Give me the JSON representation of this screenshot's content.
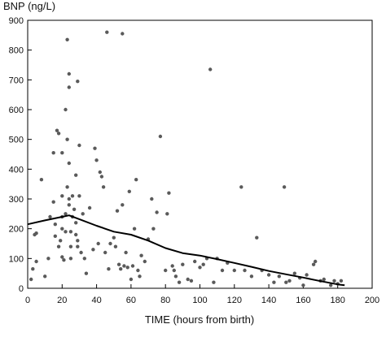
{
  "chart_data": {
    "type": "scatter",
    "title": "",
    "xlabel": "TIME (hours from birth)",
    "ylabel": "BNP (ng/L)",
    "xlim": [
      0,
      200
    ],
    "ylim": [
      0,
      900
    ],
    "xticks": [
      "0",
      "20",
      "40",
      "60",
      "80",
      "100",
      "120",
      "140",
      "160",
      "180",
      "200"
    ],
    "yticks": [
      "0",
      "100",
      "200",
      "300",
      "400",
      "500",
      "600",
      "700",
      "800",
      "900"
    ],
    "grid": false,
    "point_color": "#5a5a5a",
    "line_color": "#000000",
    "series": [
      {
        "type": "scatter",
        "points": [
          [
            2,
            30
          ],
          [
            3,
            65
          ],
          [
            4,
            180
          ],
          [
            5,
            90
          ],
          [
            5,
            185
          ],
          [
            8,
            365
          ],
          [
            10,
            40
          ],
          [
            12,
            100
          ],
          [
            13,
            240
          ],
          [
            15,
            455
          ],
          [
            15,
            290
          ],
          [
            16,
            215
          ],
          [
            16,
            175
          ],
          [
            17,
            530
          ],
          [
            18,
            520
          ],
          [
            18,
            140
          ],
          [
            19,
            160
          ],
          [
            20,
            455
          ],
          [
            20,
            310
          ],
          [
            20,
            240
          ],
          [
            20,
            200
          ],
          [
            20,
            105
          ],
          [
            21,
            95
          ],
          [
            22,
            600
          ],
          [
            22,
            250
          ],
          [
            22,
            190
          ],
          [
            23,
            835
          ],
          [
            23,
            500
          ],
          [
            23,
            340
          ],
          [
            24,
            720
          ],
          [
            24,
            675
          ],
          [
            24,
            420
          ],
          [
            24,
            300
          ],
          [
            24,
            280
          ],
          [
            25,
            190
          ],
          [
            25,
            140
          ],
          [
            25,
            100
          ],
          [
            26,
            310
          ],
          [
            26,
            240
          ],
          [
            27,
            265
          ],
          [
            28,
            380
          ],
          [
            28,
            220
          ],
          [
            28,
            180
          ],
          [
            29,
            695
          ],
          [
            29,
            160
          ],
          [
            29,
            140
          ],
          [
            30,
            480
          ],
          [
            30,
            310
          ],
          [
            31,
            120
          ],
          [
            32,
            250
          ],
          [
            33,
            100
          ],
          [
            34,
            50
          ],
          [
            36,
            270
          ],
          [
            38,
            130
          ],
          [
            39,
            470
          ],
          [
            40,
            430
          ],
          [
            41,
            150
          ],
          [
            42,
            390
          ],
          [
            43,
            375
          ],
          [
            44,
            340
          ],
          [
            45,
            120
          ],
          [
            46,
            860
          ],
          [
            47,
            65
          ],
          [
            48,
            150
          ],
          [
            50,
            170
          ],
          [
            51,
            140
          ],
          [
            52,
            260
          ],
          [
            53,
            80
          ],
          [
            54,
            65
          ],
          [
            55,
            855
          ],
          [
            55,
            280
          ],
          [
            56,
            75
          ],
          [
            57,
            120
          ],
          [
            58,
            70
          ],
          [
            59,
            325
          ],
          [
            60,
            30
          ],
          [
            61,
            75
          ],
          [
            62,
            200
          ],
          [
            63,
            365
          ],
          [
            64,
            60
          ],
          [
            65,
            40
          ],
          [
            66,
            110
          ],
          [
            68,
            90
          ],
          [
            70,
            165
          ],
          [
            72,
            300
          ],
          [
            73,
            200
          ],
          [
            75,
            255
          ],
          [
            77,
            510
          ],
          [
            80,
            60
          ],
          [
            81,
            250
          ],
          [
            82,
            320
          ],
          [
            84,
            75
          ],
          [
            85,
            60
          ],
          [
            86,
            40
          ],
          [
            88,
            20
          ],
          [
            90,
            80
          ],
          [
            93,
            30
          ],
          [
            95,
            25
          ],
          [
            97,
            90
          ],
          [
            100,
            70
          ],
          [
            102,
            80
          ],
          [
            104,
            100
          ],
          [
            106,
            735
          ],
          [
            108,
            20
          ],
          [
            110,
            100
          ],
          [
            113,
            60
          ],
          [
            116,
            85
          ],
          [
            120,
            60
          ],
          [
            124,
            340
          ],
          [
            126,
            60
          ],
          [
            130,
            40
          ],
          [
            133,
            170
          ],
          [
            136,
            60
          ],
          [
            140,
            45
          ],
          [
            143,
            20
          ],
          [
            146,
            40
          ],
          [
            149,
            340
          ],
          [
            150,
            20
          ],
          [
            152,
            25
          ],
          [
            155,
            50
          ],
          [
            158,
            35
          ],
          [
            160,
            10
          ],
          [
            162,
            45
          ],
          [
            166,
            80
          ],
          [
            167,
            90
          ],
          [
            170,
            25
          ],
          [
            172,
            30
          ],
          [
            176,
            10
          ],
          [
            178,
            25
          ],
          [
            180,
            15
          ],
          [
            182,
            25
          ]
        ]
      },
      {
        "type": "line",
        "points": [
          [
            0,
            215
          ],
          [
            10,
            228
          ],
          [
            20,
            240
          ],
          [
            24,
            245
          ],
          [
            30,
            232
          ],
          [
            40,
            210
          ],
          [
            50,
            190
          ],
          [
            60,
            180
          ],
          [
            70,
            160
          ],
          [
            80,
            135
          ],
          [
            90,
            118
          ],
          [
            100,
            110
          ],
          [
            110,
            98
          ],
          [
            120,
            85
          ],
          [
            130,
            72
          ],
          [
            140,
            58
          ],
          [
            150,
            47
          ],
          [
            160,
            36
          ],
          [
            170,
            24
          ],
          [
            180,
            13
          ],
          [
            184,
            10
          ]
        ]
      }
    ]
  }
}
